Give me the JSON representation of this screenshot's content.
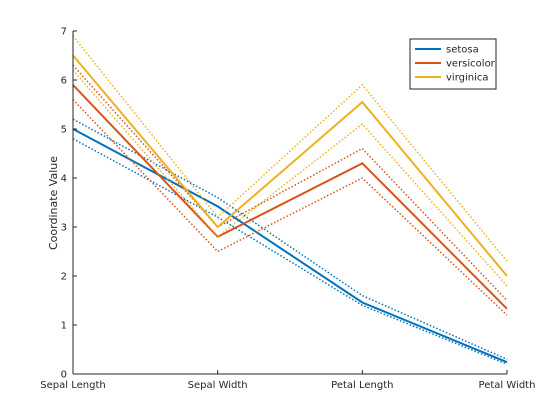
{
  "chart_data": {
    "type": "line",
    "categories": [
      "Sepal Length",
      "Sepal Width",
      "Petal Length",
      "Petal Width"
    ],
    "xlabel": "",
    "ylabel": "Coordinate Value",
    "ylim": [
      0,
      7
    ],
    "yticks": [
      0,
      1,
      2,
      3,
      4,
      5,
      6,
      7
    ],
    "grid": false,
    "legend_position": "top-right",
    "line_styles": {
      "mean": "solid",
      "bounds": "dotted"
    },
    "series": [
      {
        "name": "setosa",
        "color": "#0072BD",
        "values": [
          5.0,
          3.42,
          1.46,
          0.24
        ],
        "upper": [
          5.2,
          3.6,
          1.6,
          0.3
        ],
        "lower": [
          4.8,
          3.2,
          1.4,
          0.2
        ]
      },
      {
        "name": "versicolor",
        "color": "#D95319",
        "values": [
          5.9,
          2.8,
          4.3,
          1.33
        ],
        "upper": [
          6.3,
          3.0,
          4.6,
          1.5
        ],
        "lower": [
          5.6,
          2.5,
          4.0,
          1.2
        ]
      },
      {
        "name": "virginica",
        "color": "#EDB120",
        "values": [
          6.5,
          3.0,
          5.55,
          2.0
        ],
        "upper": [
          6.9,
          3.2,
          5.9,
          2.3
        ],
        "lower": [
          6.2,
          2.8,
          5.1,
          1.8
        ]
      }
    ]
  }
}
